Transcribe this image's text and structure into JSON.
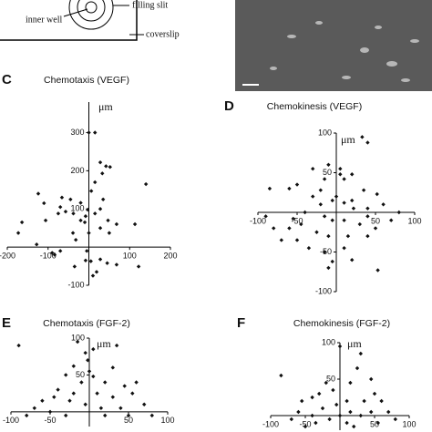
{
  "diagram": {
    "labels": [
      "inner well",
      "filling slit",
      "coverslip"
    ]
  },
  "chart_data": [
    {
      "type": "scatter",
      "panel": "C",
      "title": "Chemotaxis (VEGF)",
      "ylabel": "μm",
      "color": "#111111",
      "x": [
        0,
        15,
        28,
        42,
        52,
        33,
        15,
        6,
        -66,
        -124,
        140,
        -70,
        -75,
        -57,
        -38,
        -20,
        -3,
        -8,
        28,
        47,
        15,
        -20,
        -164,
        -106,
        -10,
        28,
        -39,
        50,
        0,
        68,
        113,
        -32,
        -5,
        -70,
        -84,
        -8,
        28,
        45,
        68,
        -128,
        -173,
        19,
        122,
        -35,
        5,
        10,
        -90,
        35,
        -45,
        -110
      ],
      "values": [
        300,
        300,
        222,
        212,
        210,
        193,
        170,
        147,
        130,
        140,
        165,
        105,
        88,
        93,
        88,
        116,
        98,
        81,
        100,
        70,
        88,
        70,
        65,
        70,
        65,
        50,
        37,
        37,
        37,
        60,
        60,
        19,
        -10,
        -10,
        -20,
        -35,
        -32,
        -42,
        -46,
        7,
        37,
        -65,
        -51,
        -51,
        -37,
        -75,
        -15,
        125,
        125,
        115
      ],
      "xlim": [
        -200,
        200
      ],
      "ylim": [
        -100,
        380
      ],
      "xticks": [
        -200,
        -100,
        100,
        200
      ],
      "yticks": [
        -100,
        100,
        200,
        300
      ]
    },
    {
      "type": "scatter",
      "panel": "D",
      "title": "Chemokinesis (VEGF)",
      "ylabel": "μm",
      "color": "#111111",
      "x": [
        33,
        40,
        -10,
        5,
        5,
        -85,
        -60,
        -50,
        -30,
        -20,
        0,
        35,
        52,
        -5,
        10,
        22,
        40,
        60,
        80,
        -90,
        -40,
        -15,
        -5,
        10,
        30,
        50,
        -80,
        -45,
        -25,
        -10,
        15,
        40,
        -70,
        -50,
        -35,
        -15,
        10,
        -5,
        -10,
        20,
        -60,
        20,
        10,
        -15,
        -30,
        40,
        70,
        -55,
        20,
        -20,
        53
      ],
      "values": [
        95,
        88,
        60,
        55,
        48,
        30,
        30,
        35,
        20,
        28,
        20,
        28,
        23,
        15,
        12,
        5,
        5,
        10,
        0,
        -5,
        0,
        -5,
        -10,
        -10,
        -15,
        -20,
        -20,
        -15,
        -25,
        -30,
        -30,
        -30,
        -35,
        -35,
        -45,
        -50,
        -45,
        -62,
        -70,
        -60,
        -20,
        48,
        42,
        42,
        55,
        -5,
        -10,
        -8,
        15,
        10,
        -73
      ],
      "xlim": [
        -100,
        100
      ],
      "ylim": [
        -100,
        100
      ],
      "xticks": [
        -100,
        -50,
        50,
        100
      ],
      "yticks": [
        -100,
        -50,
        50,
        100
      ]
    },
    {
      "type": "scatter",
      "panel": "E",
      "title": "Chemotaxis (FGF-2)",
      "ylabel": "μm",
      "color": "#111111",
      "x": [
        -90,
        -15,
        5,
        35,
        -5,
        -2,
        -20,
        0,
        5,
        30,
        -30,
        -10,
        20,
        45,
        60,
        -40,
        -20,
        10,
        30,
        55,
        70,
        -45,
        -25,
        -60,
        -5,
        15,
        40,
        -50,
        -30,
        20,
        50,
        -70,
        80,
        -80
      ],
      "values": [
        90,
        95,
        85,
        90,
        80,
        70,
        62,
        55,
        48,
        60,
        50,
        40,
        40,
        35,
        40,
        30,
        25,
        25,
        20,
        25,
        10,
        20,
        15,
        15,
        10,
        5,
        5,
        0,
        -5,
        -5,
        -5,
        5,
        -5,
        -5
      ],
      "xlim": [
        -100,
        100
      ],
      "ylim": [
        -20,
        100
      ],
      "xticks": [
        -100,
        -50,
        50,
        100
      ],
      "yticks": [
        50,
        100
      ]
    },
    {
      "type": "scatter",
      "panel": "F",
      "title": "Chemokinesis (FGF-2)",
      "ylabel": "μm",
      "color": "#111111",
      "x": [
        -85,
        0,
        30,
        25,
        45,
        15,
        -20,
        -30,
        -40,
        -10,
        -55,
        -25,
        -5,
        10,
        35,
        50,
        60,
        -60,
        -40,
        -15,
        15,
        30,
        45,
        70,
        -70,
        -35,
        0,
        10,
        55,
        80,
        -50,
        20
      ],
      "values": [
        55,
        95,
        85,
        65,
        50,
        45,
        45,
        30,
        25,
        35,
        20,
        10,
        15,
        20,
        20,
        30,
        20,
        5,
        0,
        -5,
        5,
        0,
        5,
        5,
        -5,
        -10,
        0,
        -10,
        -10,
        -5,
        -15,
        -15
      ],
      "xlim": [
        -100,
        100
      ],
      "ylim": [
        -20,
        100
      ],
      "xticks": [
        -100,
        -50,
        50,
        100
      ],
      "yticks": [
        50,
        100
      ]
    }
  ]
}
